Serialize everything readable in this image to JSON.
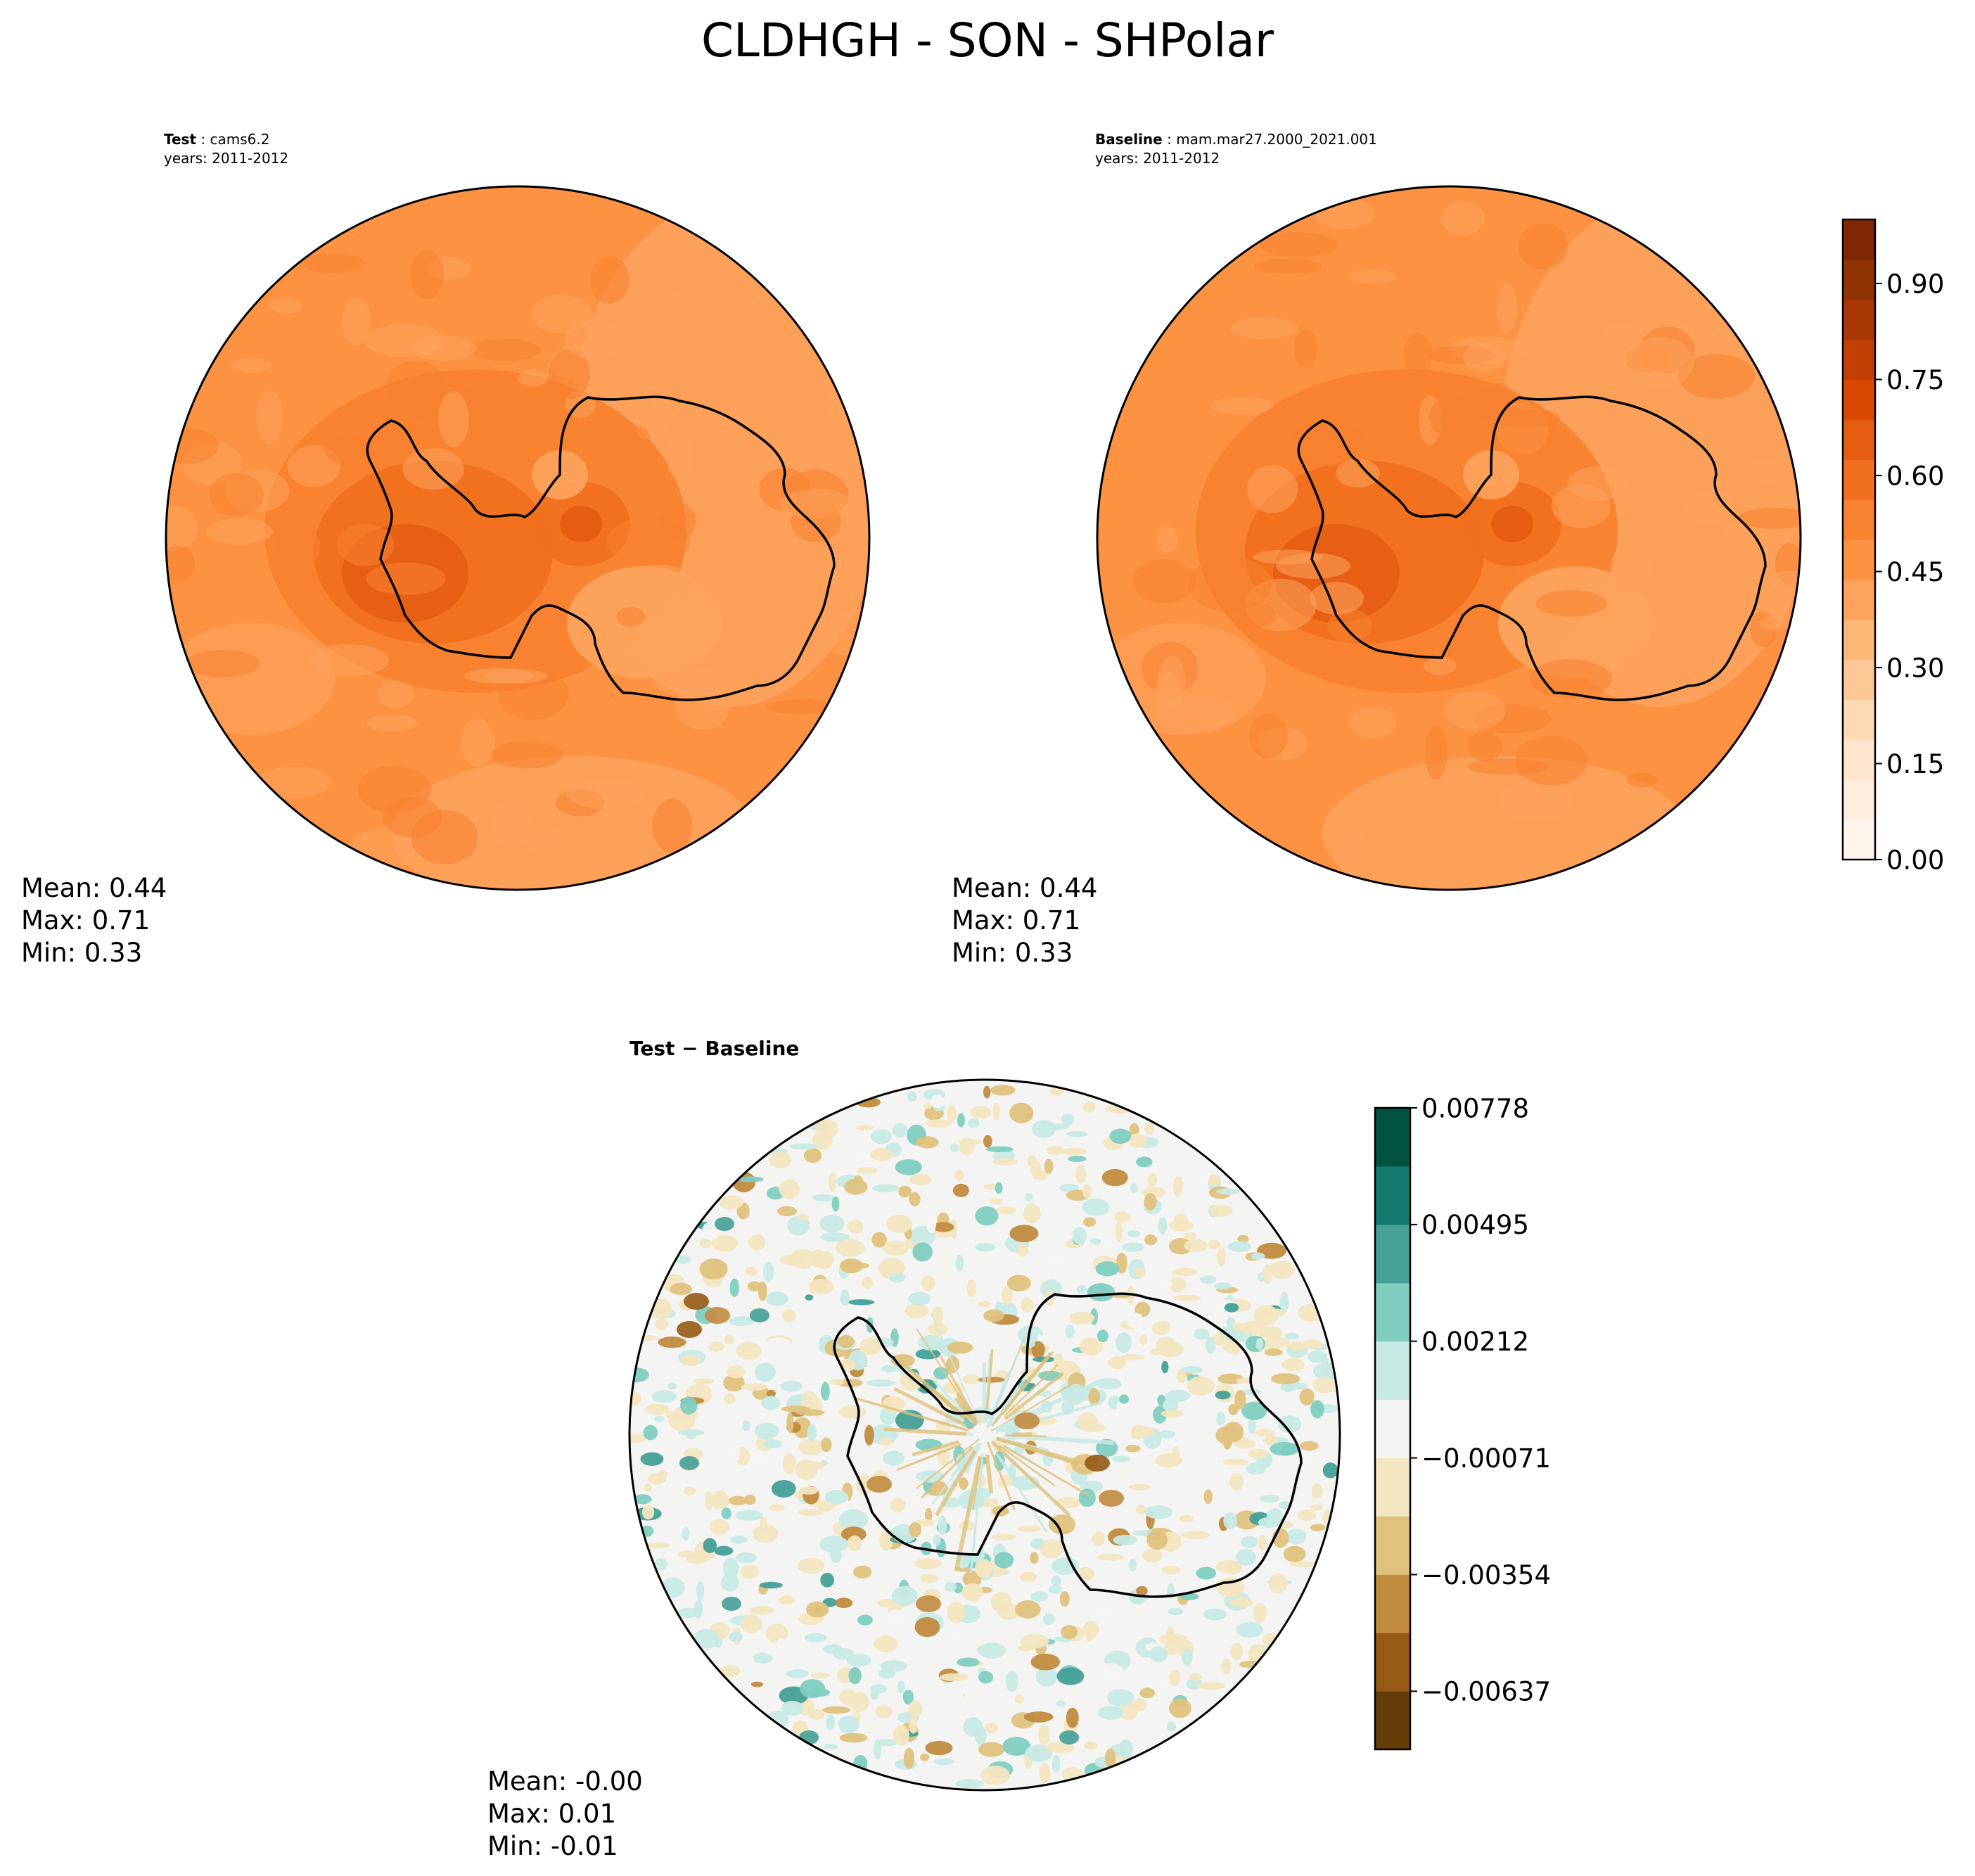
{
  "figure": {
    "title": "CLDHGH - SON - SHPolar"
  },
  "panels": {
    "test": {
      "label_bold": "Test",
      "label_value": "cams6.2",
      "years": "years: 2011-2012",
      "stats": {
        "mean": "Mean:  0.44",
        "max": "Max:  0.71",
        "min": "Min:  0.33"
      }
    },
    "baseline": {
      "label_bold": "Baseline",
      "label_value": "mam.mar27.2000_2021.001",
      "years": "years: 2011-2012",
      "stats": {
        "mean": "Mean:  0.44",
        "max": "Max:  0.71",
        "min": "Min:  0.33"
      }
    },
    "diff": {
      "label_bold": "Test − Baseline",
      "stats": {
        "mean": "Mean: -0.00",
        "max": "Max:  0.01",
        "min": "Min: -0.01"
      }
    }
  },
  "colorbars": {
    "main": {
      "cmap": "Oranges",
      "ticks": [
        "0.00",
        "0.15",
        "0.30",
        "0.45",
        "0.60",
        "0.75",
        "0.90"
      ],
      "tick_values": [
        0.0,
        0.15,
        0.3,
        0.45,
        0.6,
        0.75,
        0.9
      ],
      "range": [
        0.0,
        1.0
      ],
      "colors": [
        "#fff5eb",
        "#feeddc",
        "#fee6ce",
        "#fdd9b4",
        "#fdc895",
        "#fdb777",
        "#fda35d",
        "#fd9243",
        "#f8822f",
        "#f0701f",
        "#e55d11",
        "#d94801",
        "#c13f03",
        "#a83703",
        "#8f3204",
        "#7f2704"
      ]
    },
    "diff": {
      "cmap": "BrBG",
      "ticks": [
        "0.00778",
        "0.00495",
        "0.00212",
        "−0.00071",
        "−0.00354",
        "−0.00637"
      ],
      "tick_values": [
        0.00778,
        0.00495,
        0.00212,
        -0.00071,
        -0.00354,
        -0.00637
      ],
      "range": [
        -0.00778,
        0.00778
      ],
      "colors": [
        "#643c08",
        "#955a14",
        "#c18b3f",
        "#dfc27d",
        "#f3e6c0",
        "#f4f4f2",
        "#c7eae5",
        "#80cdc1",
        "#45a096",
        "#137a70",
        "#01533f"
      ]
    }
  },
  "chart_data": [
    {
      "type": "heatmap",
      "title": "Test: cams6.2",
      "subtitle": "years: 2011-2012",
      "projection": "south polar stereographic",
      "colormap": "Oranges",
      "value_range": [
        0.0,
        1.0
      ],
      "stats": {
        "mean": 0.44,
        "max": 0.71,
        "min": 0.33
      }
    },
    {
      "type": "heatmap",
      "title": "Baseline: mam.mar27.2000_2021.001",
      "subtitle": "years: 2011-2012",
      "projection": "south polar stereographic",
      "colormap": "Oranges",
      "value_range": [
        0.0,
        1.0
      ],
      "stats": {
        "mean": 0.44,
        "max": 0.71,
        "min": 0.33
      }
    },
    {
      "type": "heatmap",
      "title": "Test − Baseline",
      "projection": "south polar stereographic",
      "colormap": "BrBG",
      "value_range": [
        -0.00778,
        0.00778
      ],
      "stats": {
        "mean": -0.0,
        "max": 0.01,
        "min": -0.01
      }
    }
  ]
}
